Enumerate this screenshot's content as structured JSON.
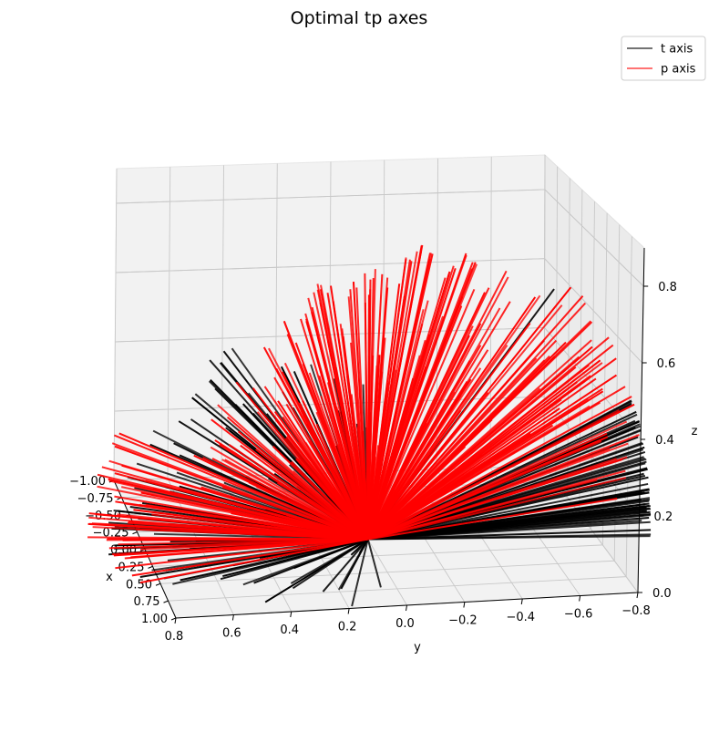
{
  "chart_data": {
    "type": "line-3d",
    "title": "Optimal tp axes",
    "xlabel": "x",
    "ylabel": "y",
    "zlabel": "z",
    "xlim": [
      -1.0,
      1.0
    ],
    "ylim": [
      -0.8,
      0.8
    ],
    "zlim": [
      0.0,
      0.9
    ],
    "x_ticks": [
      "1.00",
      "0.75",
      "0.50",
      "0.25",
      "0.00",
      "−0.25",
      "−0.50",
      "−0.75",
      "−1.00"
    ],
    "y_ticks": [
      "0.8",
      "0.6",
      "0.4",
      "0.2",
      "0.0",
      "−0.2",
      "−0.4",
      "−0.6",
      "−0.8"
    ],
    "z_ticks": [
      "0.0",
      "0.2",
      "0.4",
      "0.6",
      "0.8"
    ],
    "grid": true,
    "legend_position": "top-right",
    "series": [
      {
        "name": "t axis",
        "color": "#000000",
        "origin": [
          0,
          0,
          0
        ],
        "fans": [
          {
            "azimuth_deg_range": [
              5,
              80
            ],
            "polar_deg_range": [
              30,
              90
            ],
            "count": 120
          },
          {
            "azimuth_deg_range": [
              -95,
              -75
            ],
            "polar_deg_range": [
              70,
              90
            ],
            "count": 60
          },
          {
            "direction": [
              -0.35,
              -0.72,
              0.62
            ]
          }
        ]
      },
      {
        "name": "p axis",
        "color": "#ff0000",
        "origin": [
          0,
          0,
          0
        ],
        "fans": [
          {
            "azimuth_deg_range": [
              -60,
              60
            ],
            "polar_deg_range": [
              10,
              65
            ],
            "count": 220
          },
          {
            "azimuth_deg_range": [
              -90,
              -45
            ],
            "polar_deg_range": [
              45,
              80
            ],
            "count": 40
          },
          {
            "azimuth_deg_range": [
              60,
              100
            ],
            "polar_deg_range": [
              60,
              90
            ],
            "count": 50
          }
        ]
      }
    ]
  }
}
